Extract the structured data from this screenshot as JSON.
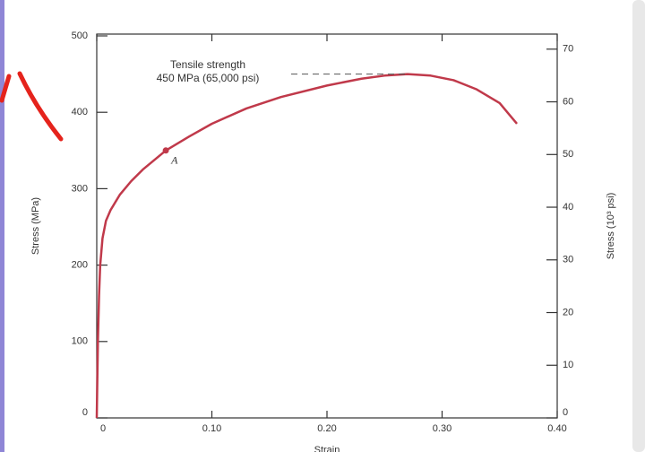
{
  "chart_data": {
    "type": "line",
    "y_label": "Stress (MPa)",
    "y2_label": "Stress (10³ psi)",
    "x_label": "Strain",
    "annotation_lines": [
      "Tensile strength",
      "450 MPa (65,000 psi)"
    ],
    "tensile_strength": 450,
    "point_label": "A",
    "point": {
      "x": 0.06,
      "y": 350
    },
    "color": "#c0394a",
    "x": [
      0,
      0.001,
      0.002,
      0.003,
      0.005,
      0.008,
      0.012,
      0.02,
      0.03,
      0.04,
      0.06,
      0.08,
      0.1,
      0.13,
      0.16,
      0.2,
      0.23,
      0.25,
      0.27,
      0.29,
      0.31,
      0.33,
      0.35,
      0.365
    ],
    "values": [
      0,
      100,
      160,
      200,
      235,
      258,
      272,
      292,
      310,
      325,
      350,
      368,
      385,
      405,
      420,
      435,
      444,
      448,
      450,
      448,
      442,
      430,
      412,
      385
    ],
    "xlim": [
      0,
      0.4
    ],
    "xticks": [
      0,
      {
        "value": 0.1,
        "label": "0.10"
      },
      {
        "value": 0.2,
        "label": "0.20"
      },
      {
        "value": 0.3,
        "label": "0.30"
      },
      {
        "value": 0.4,
        "label": "0.40"
      }
    ],
    "ylim": [
      0,
      500
    ],
    "yticks": [
      0,
      100,
      200,
      300,
      400,
      500
    ],
    "y2lim": [
      0,
      72.52
    ],
    "y2ticks": [
      0,
      10,
      20,
      30,
      40,
      50,
      60,
      70
    ]
  }
}
